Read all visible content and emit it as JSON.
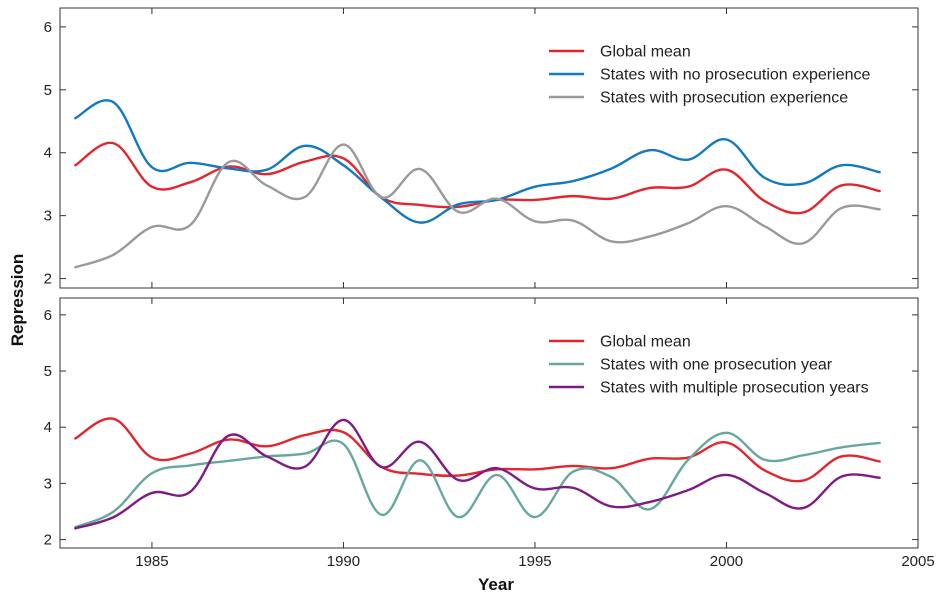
{
  "chart_data": {
    "type": "line",
    "xlabel": "Year",
    "ylabel": "Repression",
    "x": [
      1983,
      1984,
      1985,
      1986,
      1987,
      1988,
      1989,
      1990,
      1991,
      1992,
      1993,
      1994,
      1995,
      1996,
      1997,
      1998,
      1999,
      2000,
      2001,
      2002,
      2003,
      2004
    ],
    "xlim": [
      1982.6,
      2005
    ],
    "xticks": [
      1985,
      1990,
      1995,
      2000,
      2005
    ],
    "ylim": [
      1.85,
      6.3
    ],
    "yticks": [
      2,
      3,
      4,
      5,
      6
    ],
    "panels": [
      {
        "legend_position": "top-right",
        "series": [
          {
            "name": "Global mean",
            "color": "#e3262d",
            "values": [
              3.8,
              4.15,
              3.46,
              3.53,
              3.78,
              3.66,
              3.86,
              3.91,
              3.29,
              3.17,
              3.14,
              3.25,
              3.25,
              3.31,
              3.27,
              3.44,
              3.46,
              3.73,
              3.23,
              3.05,
              3.48,
              3.39
            ]
          },
          {
            "name": "States with no prosecution experience",
            "color": "#1379c0",
            "values": [
              4.55,
              4.8,
              3.77,
              3.84,
              3.75,
              3.73,
              4.11,
              3.8,
              3.28,
              2.89,
              3.18,
              3.25,
              3.46,
              3.55,
              3.75,
              4.04,
              3.89,
              4.21,
              3.6,
              3.51,
              3.8,
              3.69
            ]
          },
          {
            "name": "States with prosecution experience",
            "color": "#9a9a9a",
            "values": [
              2.18,
              2.38,
              2.82,
              2.85,
              3.85,
              3.48,
              3.3,
              4.13,
              3.29,
              3.74,
              3.06,
              3.27,
              2.91,
              2.92,
              2.59,
              2.67,
              2.88,
              3.15,
              2.83,
              2.56,
              3.12,
              3.1
            ]
          }
        ]
      },
      {
        "legend_position": "top-right",
        "series": [
          {
            "name": "Global mean",
            "color": "#e3262d",
            "values": [
              3.8,
              4.15,
              3.46,
              3.53,
              3.78,
              3.66,
              3.86,
              3.91,
              3.29,
              3.17,
              3.14,
              3.25,
              3.25,
              3.31,
              3.27,
              3.44,
              3.46,
              3.73,
              3.23,
              3.05,
              3.48,
              3.39
            ]
          },
          {
            "name": "States with one prosecution year",
            "color": "#66a89e",
            "values": [
              2.22,
              2.5,
              3.18,
              3.32,
              3.4,
              3.48,
              3.53,
              3.7,
              2.44,
              3.41,
              2.4,
              3.15,
              2.4,
              3.21,
              3.11,
              2.54,
              3.42,
              3.9,
              3.42,
              3.5,
              3.64,
              3.72
            ]
          },
          {
            "name": "States with multiple prosecution years",
            "color": "#7f1c84",
            "values": [
              2.2,
              2.4,
              2.83,
              2.85,
              3.85,
              3.48,
              3.3,
              4.13,
              3.29,
              3.74,
              3.06,
              3.27,
              2.91,
              2.92,
              2.59,
              2.67,
              2.88,
              3.15,
              2.83,
              2.56,
              3.12,
              3.1
            ]
          }
        ]
      }
    ]
  }
}
